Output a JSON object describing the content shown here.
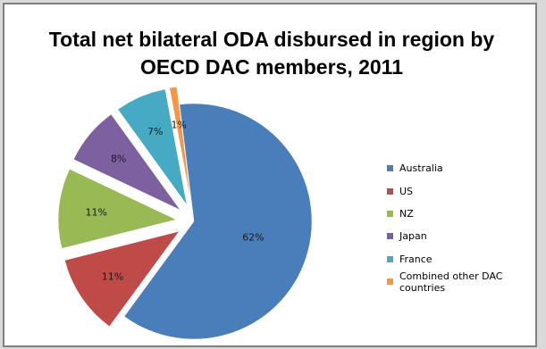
{
  "chart_data": {
    "type": "pie",
    "title": "Total net bilateral ODA disbursed in region by OECD DAC members, 2011",
    "title_lines": [
      "Total net bilateral ODA disbursed in region by",
      "OECD DAC members, 2011"
    ],
    "categories": [
      "Australia",
      "US",
      "NZ",
      "Japan",
      "France",
      "Combined other DAC countries"
    ],
    "values": [
      62,
      11,
      11,
      8,
      7,
      1
    ],
    "labels": [
      "62%",
      "11%",
      "11%",
      "8%",
      "7%",
      "1%"
    ],
    "colors": [
      "#4a7ebb",
      "#be4b48",
      "#98b954",
      "#7d60a0",
      "#46aac4",
      "#f79646"
    ],
    "legend_position": "right",
    "exploded": true
  }
}
